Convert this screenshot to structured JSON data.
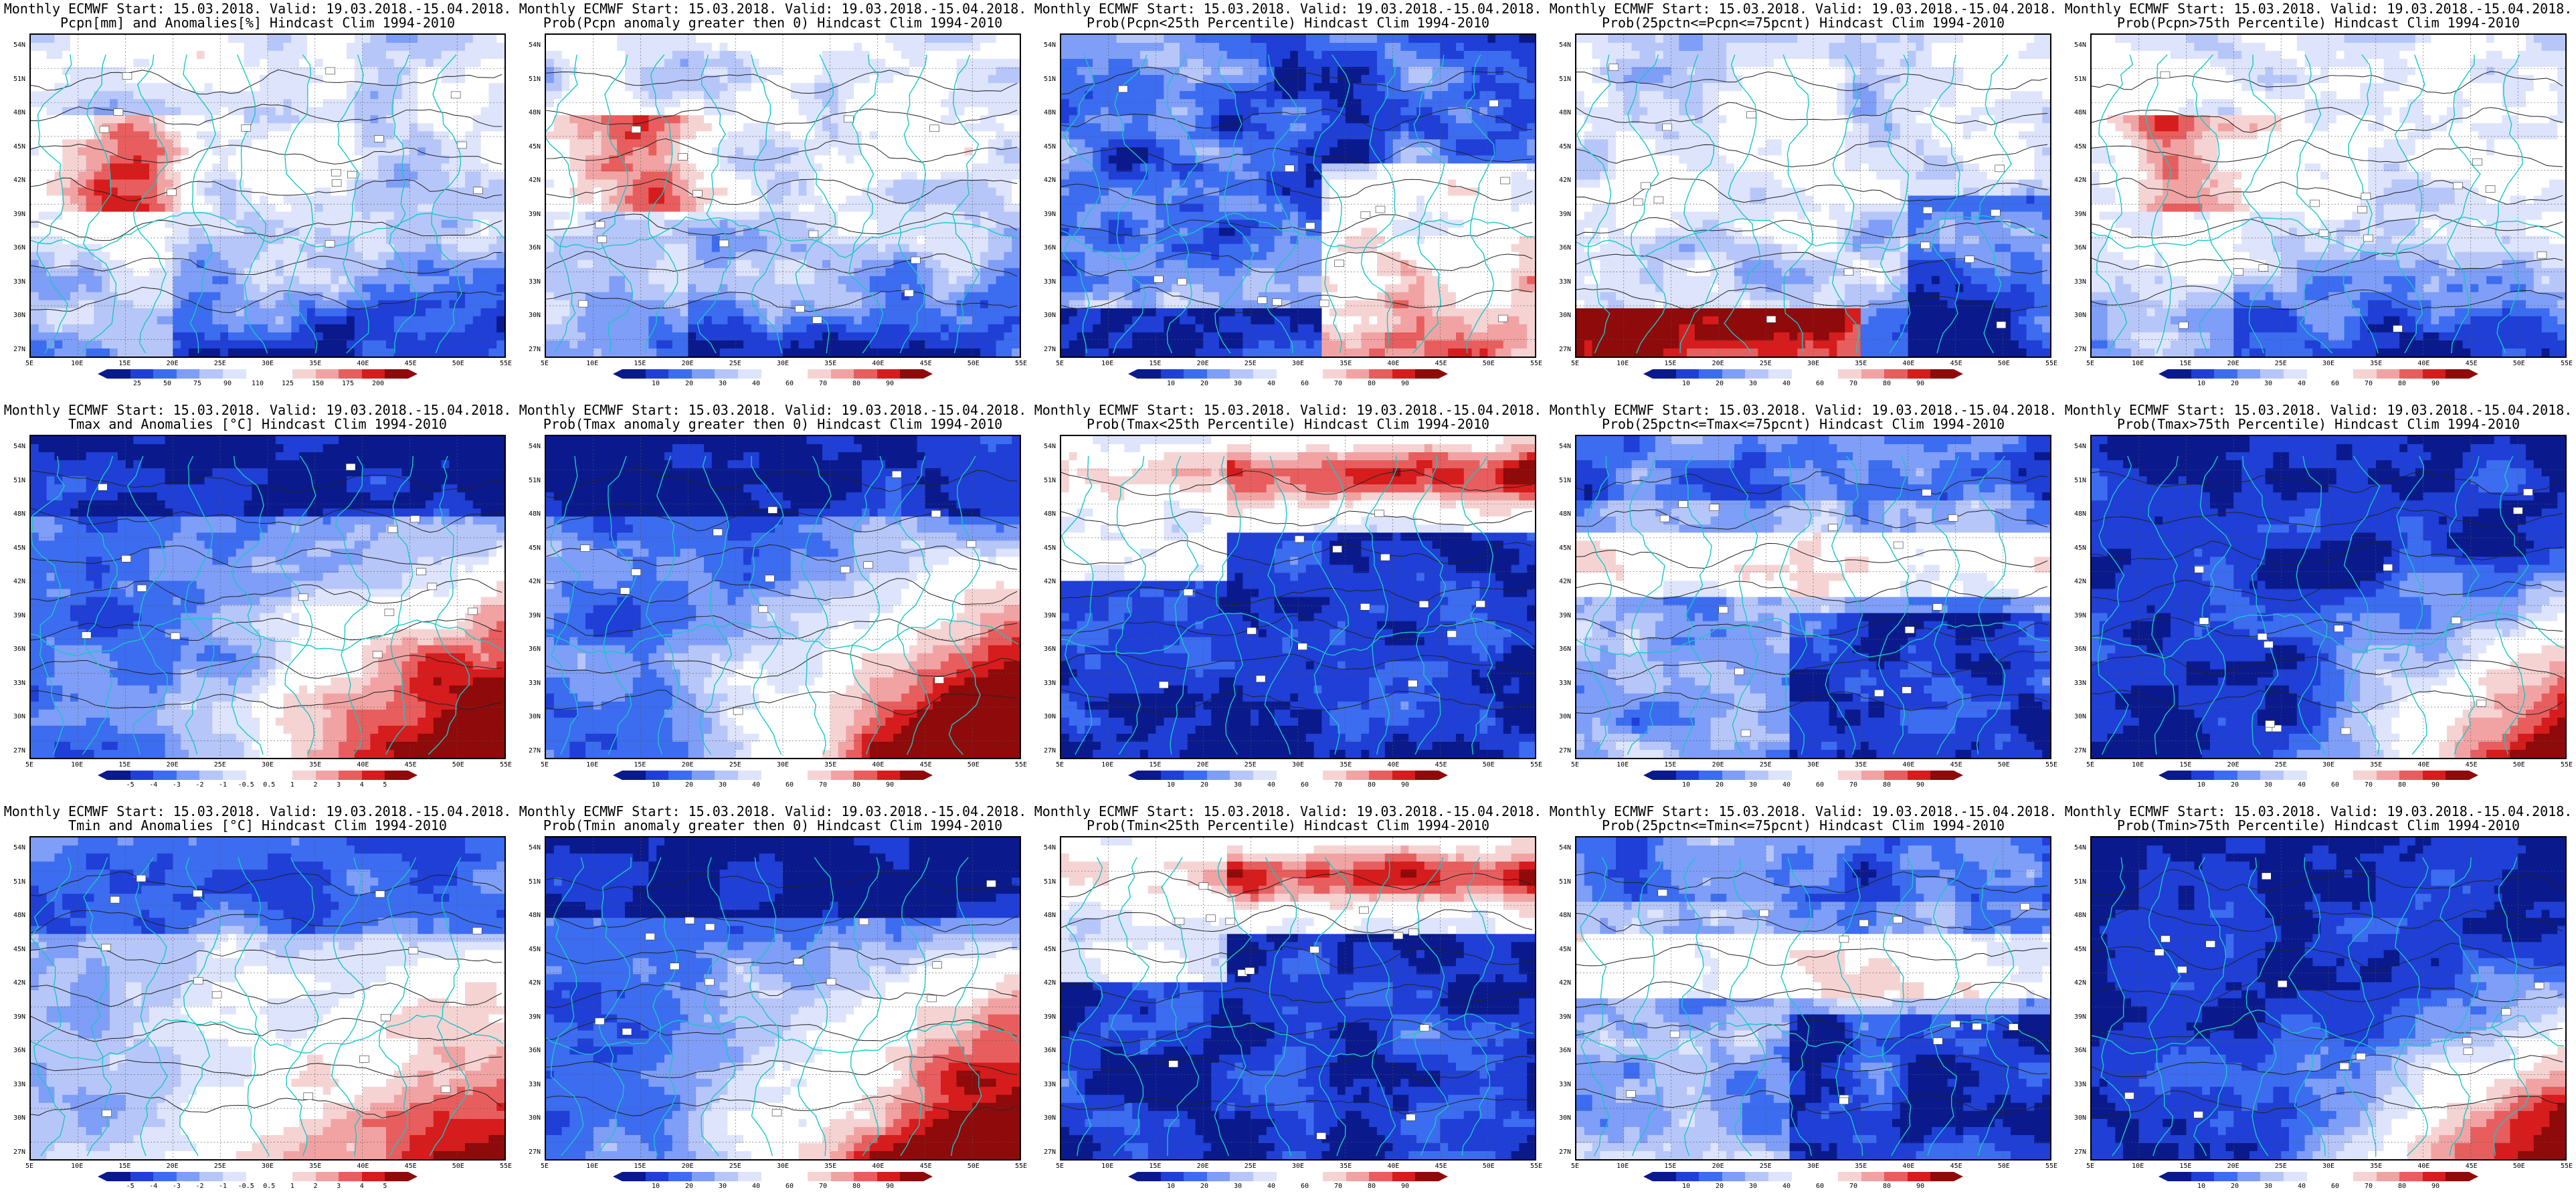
{
  "x_ticks": [
    "5E",
    "10E",
    "15E",
    "20E",
    "25E",
    "30E",
    "35E",
    "40E",
    "45E",
    "50E",
    "55E"
  ],
  "y_ticks": [
    "54N",
    "51N",
    "48N",
    "45N",
    "42N",
    "39N",
    "36N",
    "33N",
    "30N",
    "27N"
  ],
  "palettes": {
    "blue_red": [
      "#0a1a8c",
      "#1f3fd6",
      "#3c6cf0",
      "#7f9ef7",
      "#b7c6f8",
      "#dde4fb",
      "#ffffff",
      "#ffffff",
      "#f6d3d3",
      "#f1a3a3",
      "#e85e5e",
      "#d61c1c",
      "#8f0a0a"
    ],
    "anom": [
      "#0a1a8c",
      "#1f3fd6",
      "#3c6cf0",
      "#7f9ef7",
      "#b7c6f8",
      "#dde4fb",
      "#ffffff",
      "#ffffff",
      "#f6d3d3",
      "#f1a3a3",
      "#e85e5e",
      "#d61c1c",
      "#8f0a0a"
    ]
  },
  "panels": [
    {
      "title1": "Monthly ECMWF Start: 15.03.2018. Valid: 19.03.2018.-15.04.2018.",
      "title2": "Pcpn[mm] and Anomalies[%] Hindcast Clim 1994-2010",
      "cbar_labels": [
        "25",
        "50",
        "75",
        "90",
        "110",
        "125",
        "150",
        "175",
        "200"
      ],
      "field": "precip",
      "palette": "blue_red"
    },
    {
      "title1": "Monthly ECMWF Start: 15.03.2018. Valid: 19.03.2018.-15.04.2018.",
      "title2": "Prob(Pcpn anomaly greater then 0) Hindcast Clim 1994-2010",
      "cbar_labels": [
        "10",
        "20",
        "30",
        "40",
        "60",
        "70",
        "80",
        "90"
      ],
      "field": "precip",
      "palette": "blue_red"
    },
    {
      "title1": "Monthly ECMWF Start: 15.03.2018. Valid: 19.03.2018.-15.04.2018.",
      "title2": "Prob(Pcpn<25th Percentile) Hindcast Clim 1994-2010",
      "cbar_labels": [
        "10",
        "20",
        "30",
        "40",
        "60",
        "70",
        "80",
        "90"
      ],
      "field": "dryprob",
      "palette": "blue_red"
    },
    {
      "title1": "Monthly ECMWF Start: 15.03.2018. Valid: 19.03.2018.-15.04.2018.",
      "title2": "Prob(25pctn<=Pcpn<=75pcnt) Hindcast Clim 1994-2010",
      "cbar_labels": [
        "10",
        "20",
        "30",
        "40",
        "60",
        "70",
        "80",
        "90"
      ],
      "field": "normalprob",
      "palette": "blue_red"
    },
    {
      "title1": "Monthly ECMWF Start: 15.03.2018. Valid: 19.03.2018.-15.04.2018.",
      "title2": "Prob(Pcpn>75th Percentile) Hindcast Clim 1994-2010",
      "cbar_labels": [
        "10",
        "20",
        "30",
        "40",
        "60",
        "70",
        "80",
        "90"
      ],
      "field": "precip",
      "palette": "blue_red"
    },
    {
      "title1": "Monthly ECMWF Start: 15.03.2018. Valid: 19.03.2018.-15.04.2018.",
      "title2": "Tmax and Anomalies [°C] Hindcast Clim 1994-2010",
      "cbar_labels": [
        "-5",
        "-4",
        "-3",
        "-2",
        "-1",
        "-0.5",
        "0.5",
        "1",
        "2",
        "3",
        "4",
        "5"
      ],
      "field": "warm",
      "palette": "anom"
    },
    {
      "title1": "Monthly ECMWF Start: 15.03.2018. Valid: 19.03.2018.-15.04.2018.",
      "title2": "Prob(Tmax anomaly greater then 0) Hindcast Clim 1994-2010",
      "cbar_labels": [
        "10",
        "20",
        "30",
        "40",
        "60",
        "70",
        "80",
        "90"
      ],
      "field": "warm",
      "palette": "blue_red"
    },
    {
      "title1": "Monthly ECMWF Start: 15.03.2018. Valid: 19.03.2018.-15.04.2018.",
      "title2": "Prob(Tmax<25th Percentile) Hindcast Clim 1994-2010",
      "cbar_labels": [
        "10",
        "20",
        "30",
        "40",
        "60",
        "70",
        "80",
        "90"
      ],
      "field": "cold",
      "palette": "blue_red"
    },
    {
      "title1": "Monthly ECMWF Start: 15.03.2018. Valid: 19.03.2018.-15.04.2018.",
      "title2": "Prob(25pctn<=Tmax<=75pcnt) Hindcast Clim 1994-2010",
      "cbar_labels": [
        "10",
        "20",
        "30",
        "40",
        "60",
        "70",
        "80",
        "90"
      ],
      "field": "normalT",
      "palette": "blue_red"
    },
    {
      "title1": "Monthly ECMWF Start: 15.03.2018. Valid: 19.03.2018.-15.04.2018.",
      "title2": "Prob(Tmax>75th Percentile) Hindcast Clim 1994-2010",
      "cbar_labels": [
        "10",
        "20",
        "30",
        "40",
        "60",
        "70",
        "80",
        "90"
      ],
      "field": "warm2",
      "palette": "blue_red"
    },
    {
      "title1": "Monthly ECMWF Start: 15.03.2018. Valid: 19.03.2018.-15.04.2018.",
      "title2": "Tmin and Anomalies [°C] Hindcast Clim 1994-2010",
      "cbar_labels": [
        "-5",
        "-4",
        "-3",
        "-2",
        "-1",
        "-0.5",
        "0.5",
        "1",
        "2",
        "3",
        "4",
        "5"
      ],
      "field": "warmSoft",
      "palette": "anom"
    },
    {
      "title1": "Monthly ECMWF Start: 15.03.2018. Valid: 19.03.2018.-15.04.2018.",
      "title2": "Prob(Tmin anomaly greater then 0) Hindcast Clim 1994-2010",
      "cbar_labels": [
        "10",
        "20",
        "30",
        "40",
        "60",
        "70",
        "80",
        "90"
      ],
      "field": "warm",
      "palette": "blue_red"
    },
    {
      "title1": "Monthly ECMWF Start: 15.03.2018. Valid: 19.03.2018.-15.04.2018.",
      "title2": "Prob(Tmin<25th Percentile) Hindcast Clim 1994-2010",
      "cbar_labels": [
        "10",
        "20",
        "30",
        "40",
        "60",
        "70",
        "80",
        "90"
      ],
      "field": "cold",
      "palette": "blue_red"
    },
    {
      "title1": "Monthly ECMWF Start: 15.03.2018. Valid: 19.03.2018.-15.04.2018.",
      "title2": "Prob(25pctn<=Tmin<=75pcnt) Hindcast Clim 1994-2010",
      "cbar_labels": [
        "10",
        "20",
        "30",
        "40",
        "60",
        "70",
        "80",
        "90"
      ],
      "field": "normalT",
      "palette": "blue_red"
    },
    {
      "title1": "Monthly ECMWF Start: 15.03.2018. Valid: 19.03.2018.-15.04.2018.",
      "title2": "Prob(Tmin>75th Percentile) Hindcast Clim 1994-2010",
      "cbar_labels": [
        "10",
        "20",
        "30",
        "40",
        "60",
        "70",
        "80",
        "90"
      ],
      "field": "warm2",
      "palette": "blue_red"
    }
  ]
}
